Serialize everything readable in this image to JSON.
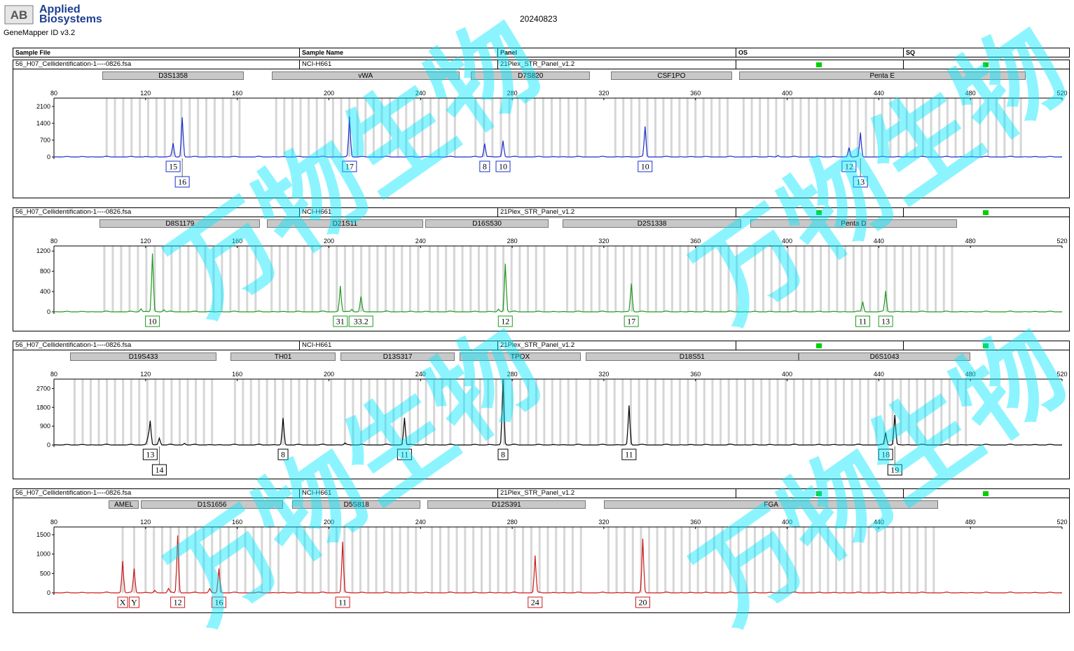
{
  "header": {
    "logo": "AB",
    "brand": "Applied Biosystems",
    "brand_line1": "Applied",
    "brand_line2": "Biosystems",
    "app": "GeneMapper ID v3.2",
    "date": "20240823"
  },
  "columns": {
    "sample_file": "Sample File",
    "sample_name": "Sample Name",
    "panel": "Panel",
    "os": "OS",
    "sq": "SQ"
  },
  "watermark": "万物生物",
  "x_ticks": [
    80,
    120,
    160,
    200,
    240,
    280,
    320,
    360,
    400,
    440,
    480,
    520
  ],
  "colors": {
    "blue": "#1a2fd0",
    "green": "#1f9a1f",
    "black": "#000000",
    "red": "#d01818",
    "status_ok": "#00d000",
    "bin": "#d6d6d6"
  },
  "chart_data": [
    {
      "type": "line",
      "dye": "blue",
      "sample_file": "56_H07_Cellidentification-1----0826.fsa",
      "sample_name": "NCI-H661",
      "panel": "21Plex_STR_Panel_v1.2",
      "y_ticks": [
        "2100",
        "1400",
        "700",
        "0"
      ],
      "y_values": [
        2100,
        1400,
        700,
        0
      ],
      "ylim": [
        0,
        2450
      ],
      "xlim": [
        80,
        520
      ],
      "markers": [
        {
          "name": "D3S1358",
          "start": 101,
          "end": 163
        },
        {
          "name": "vWA",
          "start": 175,
          "end": 257
        },
        {
          "name": "D7S820",
          "start": 262,
          "end": 314
        },
        {
          "name": "CSF1PO",
          "start": 323,
          "end": 376
        },
        {
          "name": "Penta E",
          "start": 379,
          "end": 504
        }
      ],
      "peaks": [
        {
          "size": 132,
          "height": 560,
          "label": "15",
          "row": 0
        },
        {
          "size": 136,
          "height": 1650,
          "label": "16",
          "row": 1
        },
        {
          "size": 209,
          "height": 1680,
          "label": "17",
          "row": 0
        },
        {
          "size": 268,
          "height": 560,
          "label": "8",
          "row": 0
        },
        {
          "size": 276,
          "height": 680,
          "label": "10",
          "row": 0
        },
        {
          "size": 338,
          "height": 1260,
          "label": "10",
          "row": 0
        },
        {
          "size": 396,
          "height": 60,
          "label": null,
          "row": 0
        },
        {
          "size": 427,
          "height": 390,
          "label": "12",
          "row": 0
        },
        {
          "size": 432,
          "height": 1000,
          "label": "13",
          "row": 1
        }
      ]
    },
    {
      "type": "line",
      "dye": "green",
      "sample_file": "56_H07_Cellidentification-1----0826.fsa",
      "sample_name": "NCI-H661",
      "panel": "21Plex_STR_Panel_v1.2",
      "y_ticks": [
        "1200",
        "800",
        "400",
        "0"
      ],
      "y_values": [
        1200,
        800,
        400,
        0
      ],
      "ylim": [
        0,
        1300
      ],
      "xlim": [
        80,
        520
      ],
      "markers": [
        {
          "name": "D8S1179",
          "start": 100,
          "end": 170
        },
        {
          "name": "D21S11",
          "start": 173,
          "end": 241
        },
        {
          "name": "D16S530",
          "start": 242,
          "end": 296
        },
        {
          "name": "D2S1338",
          "start": 302,
          "end": 380
        },
        {
          "name": "Penta D",
          "start": 384,
          "end": 474
        }
      ],
      "peaks": [
        {
          "size": 118,
          "height": 60,
          "label": null,
          "row": 0
        },
        {
          "size": 123,
          "height": 1150,
          "label": "10",
          "row": 0
        },
        {
          "size": 128,
          "height": 40,
          "label": null,
          "row": 0
        },
        {
          "size": 205,
          "height": 510,
          "label": "31",
          "row": 0
        },
        {
          "size": 210,
          "height": 50,
          "label": null,
          "row": 0
        },
        {
          "size": 214,
          "height": 290,
          "label": "33.2",
          "row": 0
        },
        {
          "size": 274,
          "height": 50,
          "label": null,
          "row": 0
        },
        {
          "size": 277,
          "height": 950,
          "label": "12",
          "row": 0
        },
        {
          "size": 332,
          "height": 560,
          "label": "17",
          "row": 0
        },
        {
          "size": 433,
          "height": 200,
          "label": "11",
          "row": 0
        },
        {
          "size": 443,
          "height": 410,
          "label": "13",
          "row": 0
        }
      ]
    },
    {
      "type": "line",
      "dye": "black",
      "sample_file": "56_H07_Cellidentification-1----0826.fsa",
      "sample_name": "NCI-H661",
      "panel": "21Plex_STR_Panel_v1.2",
      "y_ticks": [
        "2700",
        "1800",
        "900",
        "0"
      ],
      "y_values": [
        2700,
        1800,
        900,
        0
      ],
      "ylim": [
        0,
        3150
      ],
      "xlim": [
        80,
        520
      ],
      "markers": [
        {
          "name": "D19S433",
          "start": 87,
          "end": 151
        },
        {
          "name": "TH01",
          "start": 157,
          "end": 203
        },
        {
          "name": "D13S317",
          "start": 205,
          "end": 255
        },
        {
          "name": "TPOX",
          "start": 257,
          "end": 310
        },
        {
          "name": "D18S51",
          "start": 312,
          "end": 405
        },
        {
          "name": "D6S1043",
          "start": 405,
          "end": 480
        }
      ],
      "peaks": [
        {
          "size": 121,
          "height": 330,
          "label": null,
          "row": 0
        },
        {
          "size": 122,
          "height": 1150,
          "label": "13",
          "row": 0
        },
        {
          "size": 126,
          "height": 330,
          "label": "14",
          "row": 1
        },
        {
          "size": 137,
          "height": 80,
          "label": null,
          "row": 0
        },
        {
          "size": 180,
          "height": 1270,
          "label": "8",
          "row": 0
        },
        {
          "size": 207,
          "height": 80,
          "label": null,
          "row": 0
        },
        {
          "size": 233,
          "height": 1300,
          "label": "11",
          "row": 0
        },
        {
          "size": 276,
          "height": 3150,
          "label": "8",
          "row": 0
        },
        {
          "size": 331,
          "height": 1880,
          "label": "11",
          "row": 0
        },
        {
          "size": 443,
          "height": 580,
          "label": "18",
          "row": 0
        },
        {
          "size": 447,
          "height": 1430,
          "label": "19",
          "row": 1
        }
      ]
    },
    {
      "type": "line",
      "dye": "red",
      "sample_file": "56_H07_Cellidentification-1----0826.fsa",
      "sample_name": "NCI-H661",
      "panel": "21Plex_STR_Panel_v1.2",
      "y_ticks": [
        "1500",
        "1000",
        "500",
        "0"
      ],
      "y_values": [
        1500,
        1000,
        500,
        0
      ],
      "ylim": [
        0,
        1700
      ],
      "xlim": [
        80,
        520
      ],
      "markers": [
        {
          "name": "AMEL",
          "start": 104,
          "end": 117
        },
        {
          "name": "D1S1656",
          "start": 118,
          "end": 180
        },
        {
          "name": "D5S818",
          "start": 184,
          "end": 240
        },
        {
          "name": "D12S391",
          "start": 243,
          "end": 312
        },
        {
          "name": "FGA",
          "start": 320,
          "end": 466
        }
      ],
      "peaks": [
        {
          "size": 110,
          "height": 820,
          "label": "X",
          "row": 0
        },
        {
          "size": 115,
          "height": 620,
          "label": "Y",
          "row": 0
        },
        {
          "size": 124,
          "height": 60,
          "label": null,
          "row": 0
        },
        {
          "size": 130,
          "height": 100,
          "label": null,
          "row": 0
        },
        {
          "size": 134,
          "height": 1480,
          "label": "12",
          "row": 0
        },
        {
          "size": 148,
          "height": 100,
          "label": null,
          "row": 0
        },
        {
          "size": 152,
          "height": 620,
          "label": "16",
          "row": 0
        },
        {
          "size": 206,
          "height": 1320,
          "label": "11",
          "row": 0
        },
        {
          "size": 290,
          "height": 960,
          "label": "24",
          "row": 0
        },
        {
          "size": 337,
          "height": 1380,
          "label": "20",
          "row": 0
        }
      ]
    }
  ]
}
